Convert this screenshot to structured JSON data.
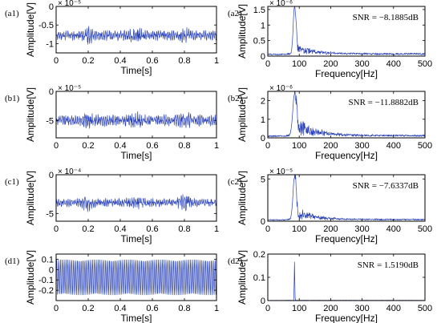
{
  "figure": {
    "signal_color": "#2a41b8",
    "time_xlabel": "Time[s]",
    "freq_xlabel": "Frequency[Hz]",
    "ylabel": "Amplitude[V]",
    "time_xticks": [
      "0",
      "0.2",
      "0.4",
      "0.6",
      "0.8",
      "1"
    ],
    "freq_xticks": [
      "0",
      "100",
      "200",
      "300",
      "400",
      "500"
    ]
  },
  "chart_data": [
    {
      "type": "line",
      "id": "a1",
      "panel_label": "(a1)",
      "domain": "time",
      "xlim": [
        0,
        1
      ],
      "ylim": [
        -1.25,
        0
      ],
      "exponent": "× 10⁻⁵",
      "yticks": [
        {
          "v": -1,
          "t": "-1"
        },
        {
          "v": -0.5,
          "t": "-0.5"
        },
        {
          "v": 0,
          "t": "0"
        }
      ],
      "signal": {
        "mean": -0.78,
        "amp": 0.11,
        "bursts": [
          0.2,
          0.5,
          0.8
        ],
        "burst_gain": 1.9,
        "seed": 11
      }
    },
    {
      "type": "line",
      "id": "a2",
      "panel_label": "(a2)",
      "domain": "frequency",
      "xlim": [
        0,
        500
      ],
      "ylim": [
        0,
        1.6
      ],
      "exponent": "× 10⁻⁶",
      "yticks": [
        {
          "v": 0,
          "t": "0"
        },
        {
          "v": 0.5,
          "t": "0.5"
        },
        {
          "v": 1,
          "t": "1"
        },
        {
          "v": 1.5,
          "t": "1.5"
        }
      ],
      "snr": "SNR = −8.1885dB",
      "spectrum": {
        "baseline": 0.07,
        "peak_x": 85,
        "peak_y": 1.5,
        "width": 6,
        "tail": 0.25,
        "seed": 21
      }
    },
    {
      "type": "line",
      "id": "b1",
      "panel_label": "(b1)",
      "domain": "time",
      "xlim": [
        0,
        1
      ],
      "ylim": [
        -8,
        0
      ],
      "exponent": "× 10⁻⁵",
      "yticks": [
        {
          "v": -5,
          "t": "-5"
        },
        {
          "v": 0,
          "t": "0"
        }
      ],
      "signal": {
        "mean": -5.0,
        "amp": 0.8,
        "bursts": [
          0.2,
          0.5,
          0.8
        ],
        "burst_gain": 1.6,
        "seed": 12
      }
    },
    {
      "type": "line",
      "id": "b2",
      "panel_label": "(b2)",
      "domain": "frequency",
      "xlim": [
        0,
        500
      ],
      "ylim": [
        0,
        2.5
      ],
      "exponent": "× 10⁻⁶",
      "yticks": [
        {
          "v": 0,
          "t": "0"
        },
        {
          "v": 1,
          "t": "1"
        },
        {
          "v": 2,
          "t": "2"
        }
      ],
      "snr": "SNR = −11.8882dB",
      "spectrum": {
        "baseline": 0.12,
        "peak_x": 85,
        "peak_y": 2.2,
        "width": 8,
        "tail": 0.55,
        "seed": 22
      }
    },
    {
      "type": "line",
      "id": "c1",
      "panel_label": "(c1)",
      "domain": "time",
      "xlim": [
        0,
        1
      ],
      "ylim": [
        -6,
        0
      ],
      "exponent": "× 10⁻⁴",
      "yticks": [
        {
          "v": -5,
          "t": "-5"
        },
        {
          "v": 0,
          "t": "0"
        }
      ],
      "signal": {
        "mean": -3.6,
        "amp": 0.45,
        "bursts": [
          0.2,
          0.5,
          0.8
        ],
        "burst_gain": 2.2,
        "seed": 13
      }
    },
    {
      "type": "line",
      "id": "c2",
      "panel_label": "(c2)",
      "domain": "frequency",
      "xlim": [
        0,
        500
      ],
      "ylim": [
        0,
        5.5
      ],
      "exponent": "× 10⁻⁵",
      "yticks": [
        {
          "v": 0,
          "t": "0"
        },
        {
          "v": 5,
          "t": "5"
        }
      ],
      "snr": "SNR = −7.6337dB",
      "spectrum": {
        "baseline": 0.2,
        "peak_x": 85,
        "peak_y": 5.0,
        "width": 7,
        "tail": 0.35,
        "seed": 23
      }
    },
    {
      "type": "line",
      "id": "d1",
      "panel_label": "(d1)",
      "domain": "time",
      "xlim": [
        0,
        1
      ],
      "ylim": [
        -0.3,
        0.15
      ],
      "exponent": "",
      "yticks": [
        {
          "v": -0.2,
          "t": "-0.2"
        },
        {
          "v": -0.1,
          "t": "-0.1"
        },
        {
          "v": 0,
          "t": "0"
        },
        {
          "v": 0.1,
          "t": "0.1"
        }
      ],
      "signal": {
        "mean": -0.075,
        "amp": 0.17,
        "bursts": [],
        "burst_gain": 1,
        "seed": 14,
        "clean": true
      }
    },
    {
      "type": "line",
      "id": "d2",
      "panel_label": "(d2)",
      "domain": "frequency",
      "xlim": [
        0,
        500
      ],
      "ylim": [
        0,
        0.2
      ],
      "exponent": "",
      "yticks": [
        {
          "v": 0,
          "t": "0"
        },
        {
          "v": 0.1,
          "t": "0.1"
        },
        {
          "v": 0.2,
          "t": "0.2"
        }
      ],
      "snr": "SNR = 1.5190dB",
      "spectrum": {
        "baseline": 0.001,
        "peak_x": 85,
        "peak_y": 0.165,
        "width": 1.2,
        "tail": 0.0,
        "seed": 24
      }
    }
  ]
}
